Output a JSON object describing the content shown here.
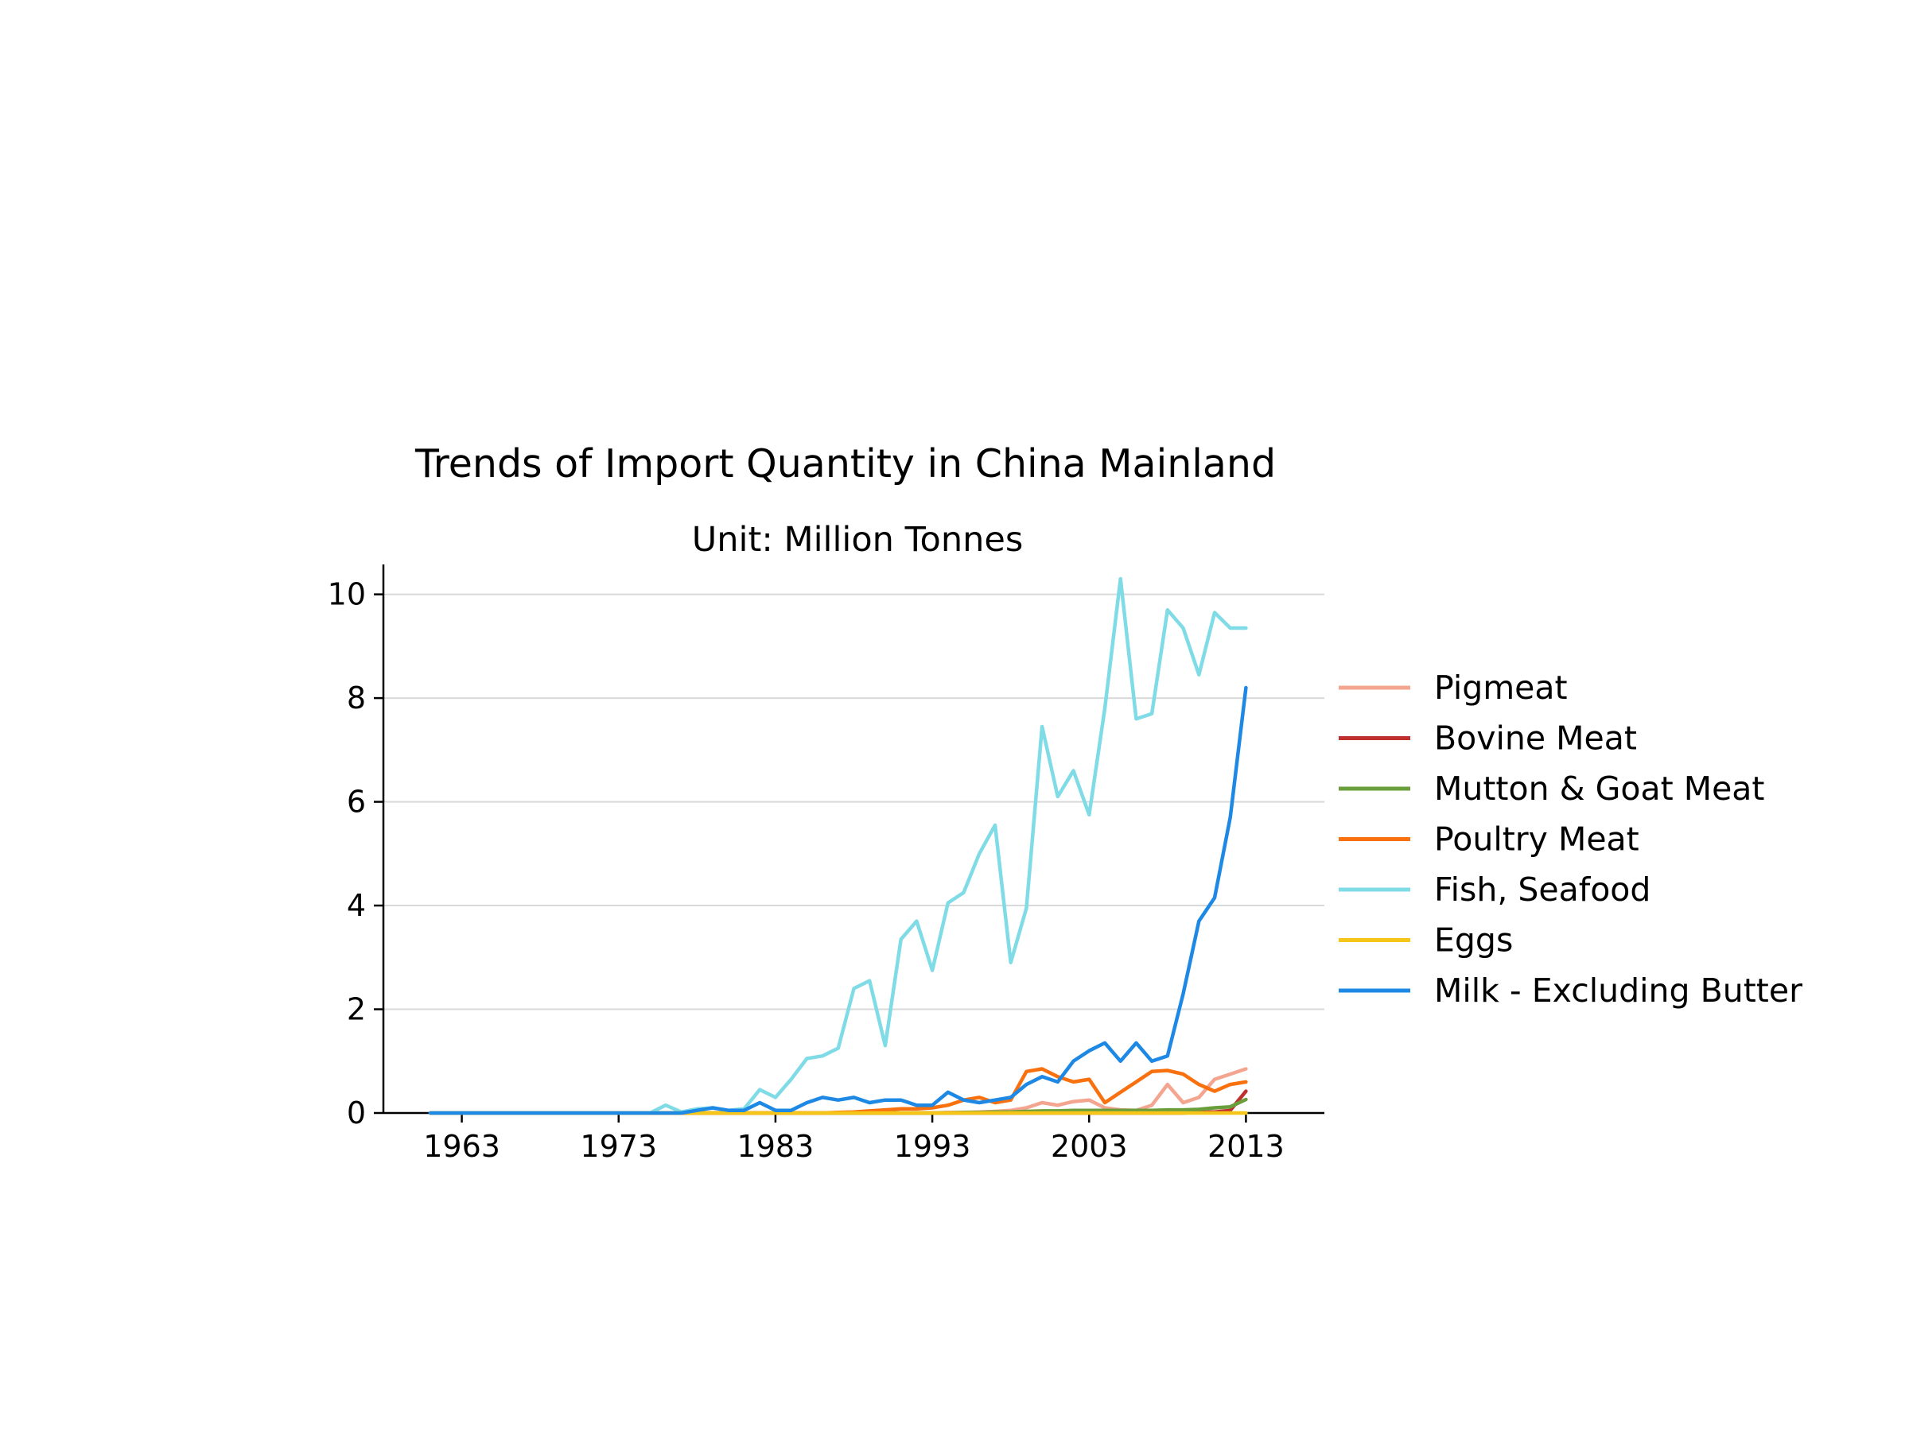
{
  "chart_data": {
    "type": "line",
    "title": "Trends of Import Quantity in China Mainland",
    "subtitle": "Unit: Million Tonnes",
    "xlabel": "",
    "ylabel": "",
    "xlim": [
      1958,
      2018
    ],
    "ylim": [
      0,
      10.5
    ],
    "x_ticks": [
      1963,
      1973,
      1983,
      1993,
      2003,
      2013
    ],
    "y_ticks": [
      0,
      2,
      4,
      6,
      8,
      10
    ],
    "grid": "horizontal",
    "legend_position": "right",
    "x": [
      1961,
      1962,
      1963,
      1964,
      1965,
      1966,
      1967,
      1968,
      1969,
      1970,
      1971,
      1972,
      1973,
      1974,
      1975,
      1976,
      1977,
      1978,
      1979,
      1980,
      1981,
      1982,
      1983,
      1984,
      1985,
      1986,
      1987,
      1988,
      1989,
      1990,
      1991,
      1992,
      1993,
      1994,
      1995,
      1996,
      1997,
      1998,
      1999,
      2000,
      2001,
      2002,
      2003,
      2004,
      2005,
      2006,
      2007,
      2008,
      2009,
      2010,
      2011,
      2012,
      2013
    ],
    "series": [
      {
        "name": "Pigmeat",
        "color": "#f4a58f",
        "values": [
          0,
          0,
          0,
          0,
          0,
          0,
          0,
          0,
          0,
          0,
          0,
          0,
          0,
          0,
          0,
          0,
          0,
          0,
          0,
          0,
          0,
          0,
          0,
          0,
          0,
          0,
          0,
          0,
          0,
          0,
          0,
          0,
          0,
          0.01,
          0.01,
          0.02,
          0.03,
          0.05,
          0.1,
          0.2,
          0.15,
          0.22,
          0.25,
          0.1,
          0.06,
          0.05,
          0.15,
          0.55,
          0.2,
          0.3,
          0.65,
          0.75,
          0.85
        ]
      },
      {
        "name": "Bovine Meat",
        "color": "#c0302e",
        "values": [
          0,
          0,
          0,
          0,
          0,
          0,
          0,
          0,
          0,
          0,
          0,
          0,
          0,
          0,
          0,
          0,
          0,
          0,
          0,
          0,
          0,
          0,
          0,
          0,
          0,
          0,
          0,
          0,
          0,
          0,
          0,
          0,
          0,
          0,
          0,
          0,
          0,
          0,
          0,
          0,
          0,
          0,
          0,
          0,
          0,
          0,
          0,
          0,
          0,
          0.01,
          0.02,
          0.05,
          0.42
        ]
      },
      {
        "name": "Mutton & Goat Meat",
        "color": "#6a9e3a",
        "values": [
          0,
          0,
          0,
          0,
          0,
          0,
          0,
          0,
          0,
          0,
          0,
          0,
          0,
          0,
          0,
          0,
          0,
          0,
          0,
          0,
          0,
          0,
          0,
          0,
          0,
          0,
          0,
          0,
          0,
          0,
          0,
          0,
          0,
          0,
          0.01,
          0.01,
          0.02,
          0.02,
          0.03,
          0.04,
          0.04,
          0.05,
          0.05,
          0.05,
          0.05,
          0.05,
          0.05,
          0.06,
          0.06,
          0.07,
          0.1,
          0.12,
          0.26
        ]
      },
      {
        "name": "Poultry Meat",
        "color": "#f9710e",
        "values": [
          0,
          0,
          0,
          0,
          0,
          0,
          0,
          0,
          0,
          0,
          0,
          0,
          0,
          0,
          0,
          0,
          0,
          0,
          0,
          0,
          0,
          0,
          0,
          0,
          0,
          0,
          0.01,
          0.02,
          0.04,
          0.06,
          0.08,
          0.08,
          0.1,
          0.15,
          0.25,
          0.3,
          0.2,
          0.25,
          0.8,
          0.85,
          0.7,
          0.6,
          0.65,
          0.2,
          0.4,
          0.6,
          0.8,
          0.82,
          0.75,
          0.55,
          0.42,
          0.55,
          0.6
        ]
      },
      {
        "name": "Fish, Seafood",
        "color": "#7fdbe6",
        "values": [
          0,
          0,
          0,
          0,
          0,
          0,
          0,
          0,
          0,
          0,
          0,
          0,
          0,
          0,
          0,
          0.15,
          0.02,
          0.08,
          0.1,
          0.05,
          0.08,
          0.45,
          0.3,
          0.65,
          1.05,
          1.1,
          1.25,
          2.4,
          2.55,
          1.3,
          3.35,
          3.7,
          2.75,
          4.05,
          4.25,
          5.0,
          5.55,
          2.9,
          3.95,
          7.45,
          6.1,
          6.6,
          5.75,
          7.8,
          10.3,
          7.6,
          7.7,
          9.7,
          9.35,
          8.45,
          9.65,
          9.35,
          9.35
        ]
      },
      {
        "name": "Eggs",
        "color": "#f5c518",
        "values": [
          0,
          0,
          0,
          0,
          0,
          0,
          0,
          0,
          0,
          0,
          0,
          0,
          0,
          0,
          0,
          0,
          0,
          0,
          0,
          0,
          0,
          0,
          0,
          0,
          0,
          0,
          0,
          0,
          0,
          0,
          0,
          0,
          0,
          0,
          0,
          0,
          0,
          0,
          0,
          0,
          0,
          0,
          0,
          0,
          0,
          0,
          0,
          0,
          0,
          0,
          0,
          0,
          0
        ]
      },
      {
        "name": "Milk - Excluding Butter",
        "color": "#1e88e5",
        "values": [
          0,
          0,
          0,
          0,
          0,
          0,
          0,
          0,
          0,
          0,
          0,
          0,
          0,
          0,
          0,
          0,
          0,
          0.05,
          0.1,
          0.05,
          0.05,
          0.2,
          0.05,
          0.05,
          0.2,
          0.3,
          0.25,
          0.3,
          0.2,
          0.25,
          0.25,
          0.15,
          0.15,
          0.4,
          0.25,
          0.2,
          0.25,
          0.3,
          0.55,
          0.7,
          0.6,
          1.0,
          1.2,
          1.35,
          1.0,
          1.35,
          1.0,
          1.1,
          2.3,
          3.7,
          4.15,
          5.7,
          8.2
        ]
      }
    ]
  }
}
